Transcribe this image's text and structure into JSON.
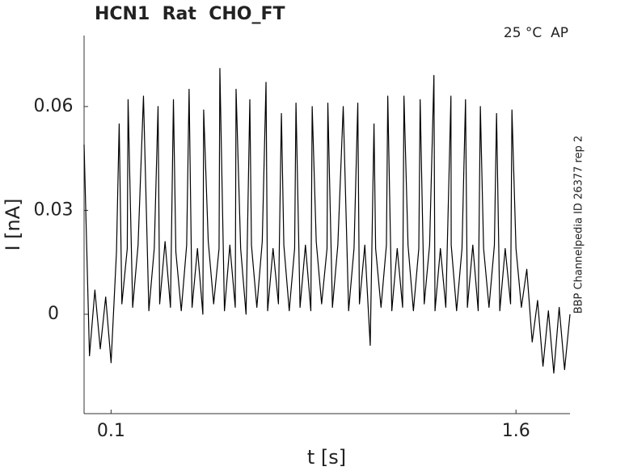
{
  "chart_data": {
    "type": "line",
    "title": "HCN1  Rat  CHO_FT",
    "annotation": "25 °C  AP",
    "side_note": "BBP Channelpedia ID 26377 rep 2",
    "xlabel": "t [s]",
    "ylabel": "I [nA]",
    "color": "#000000",
    "xlim": [
      0,
      1.8
    ],
    "ylim": [
      -0.0287,
      0.0805
    ],
    "xticks": [
      0.1,
      1.6
    ],
    "yticks": [
      0,
      0.03,
      0.06
    ],
    "grid": false,
    "x": [
      0.0,
      0.02,
      0.04,
      0.06,
      0.08,
      0.1,
      0.12,
      0.13,
      0.14,
      0.16,
      0.163,
      0.18,
      0.2,
      0.22,
      0.24,
      0.26,
      0.274,
      0.28,
      0.3,
      0.32,
      0.331,
      0.34,
      0.36,
      0.38,
      0.389,
      0.4,
      0.42,
      0.44,
      0.443,
      0.46,
      0.48,
      0.5,
      0.503,
      0.52,
      0.54,
      0.56,
      0.563,
      0.58,
      0.6,
      0.614,
      0.62,
      0.64,
      0.66,
      0.674,
      0.68,
      0.7,
      0.72,
      0.731,
      0.74,
      0.76,
      0.78,
      0.785,
      0.8,
      0.82,
      0.84,
      0.845,
      0.86,
      0.88,
      0.9,
      0.903,
      0.92,
      0.94,
      0.96,
      0.98,
      1.0,
      1.014,
      1.02,
      1.04,
      1.06,
      1.074,
      1.08,
      1.1,
      1.12,
      1.125,
      1.14,
      1.16,
      1.18,
      1.185,
      1.2,
      1.22,
      1.24,
      1.245,
      1.26,
      1.28,
      1.296,
      1.3,
      1.32,
      1.34,
      1.359,
      1.36,
      1.38,
      1.4,
      1.413,
      1.42,
      1.44,
      1.46,
      1.468,
      1.48,
      1.5,
      1.52,
      1.528,
      1.54,
      1.56,
      1.58,
      1.585,
      1.6,
      1.62,
      1.64,
      1.66,
      1.68,
      1.7,
      1.72,
      1.74,
      1.76,
      1.78,
      1.8
    ],
    "values": [
      0.049,
      -0.012,
      0.007,
      -0.01,
      0.005,
      -0.014,
      0.018,
      0.055,
      0.003,
      0.019,
      0.062,
      0.002,
      0.02,
      0.063,
      0.001,
      0.019,
      0.06,
      0.003,
      0.021,
      0.002,
      0.062,
      0.018,
      0.001,
      0.02,
      0.065,
      0.002,
      0.019,
      0.0,
      0.059,
      0.021,
      0.003,
      0.019,
      0.071,
      0.001,
      0.02,
      0.002,
      0.065,
      0.019,
      0.0,
      0.062,
      0.02,
      0.002,
      0.021,
      0.067,
      0.001,
      0.019,
      0.003,
      0.058,
      0.02,
      0.001,
      0.019,
      0.061,
      0.002,
      0.02,
      0.001,
      0.06,
      0.021,
      0.003,
      0.019,
      0.061,
      0.002,
      0.02,
      0.06,
      0.001,
      0.019,
      0.061,
      0.003,
      0.02,
      -0.009,
      0.055,
      0.019,
      0.002,
      0.02,
      0.063,
      0.001,
      0.019,
      0.002,
      0.063,
      0.02,
      0.001,
      0.019,
      0.062,
      0.003,
      0.02,
      0.069,
      0.001,
      0.019,
      0.002,
      0.063,
      0.02,
      0.001,
      0.019,
      0.062,
      0.002,
      0.02,
      0.001,
      0.06,
      0.019,
      0.002,
      0.02,
      0.058,
      0.001,
      0.019,
      0.003,
      0.059,
      0.019,
      0.002,
      0.013,
      -0.008,
      0.004,
      -0.015,
      0.001,
      -0.017,
      0.002,
      -0.016,
      0.0
    ]
  }
}
